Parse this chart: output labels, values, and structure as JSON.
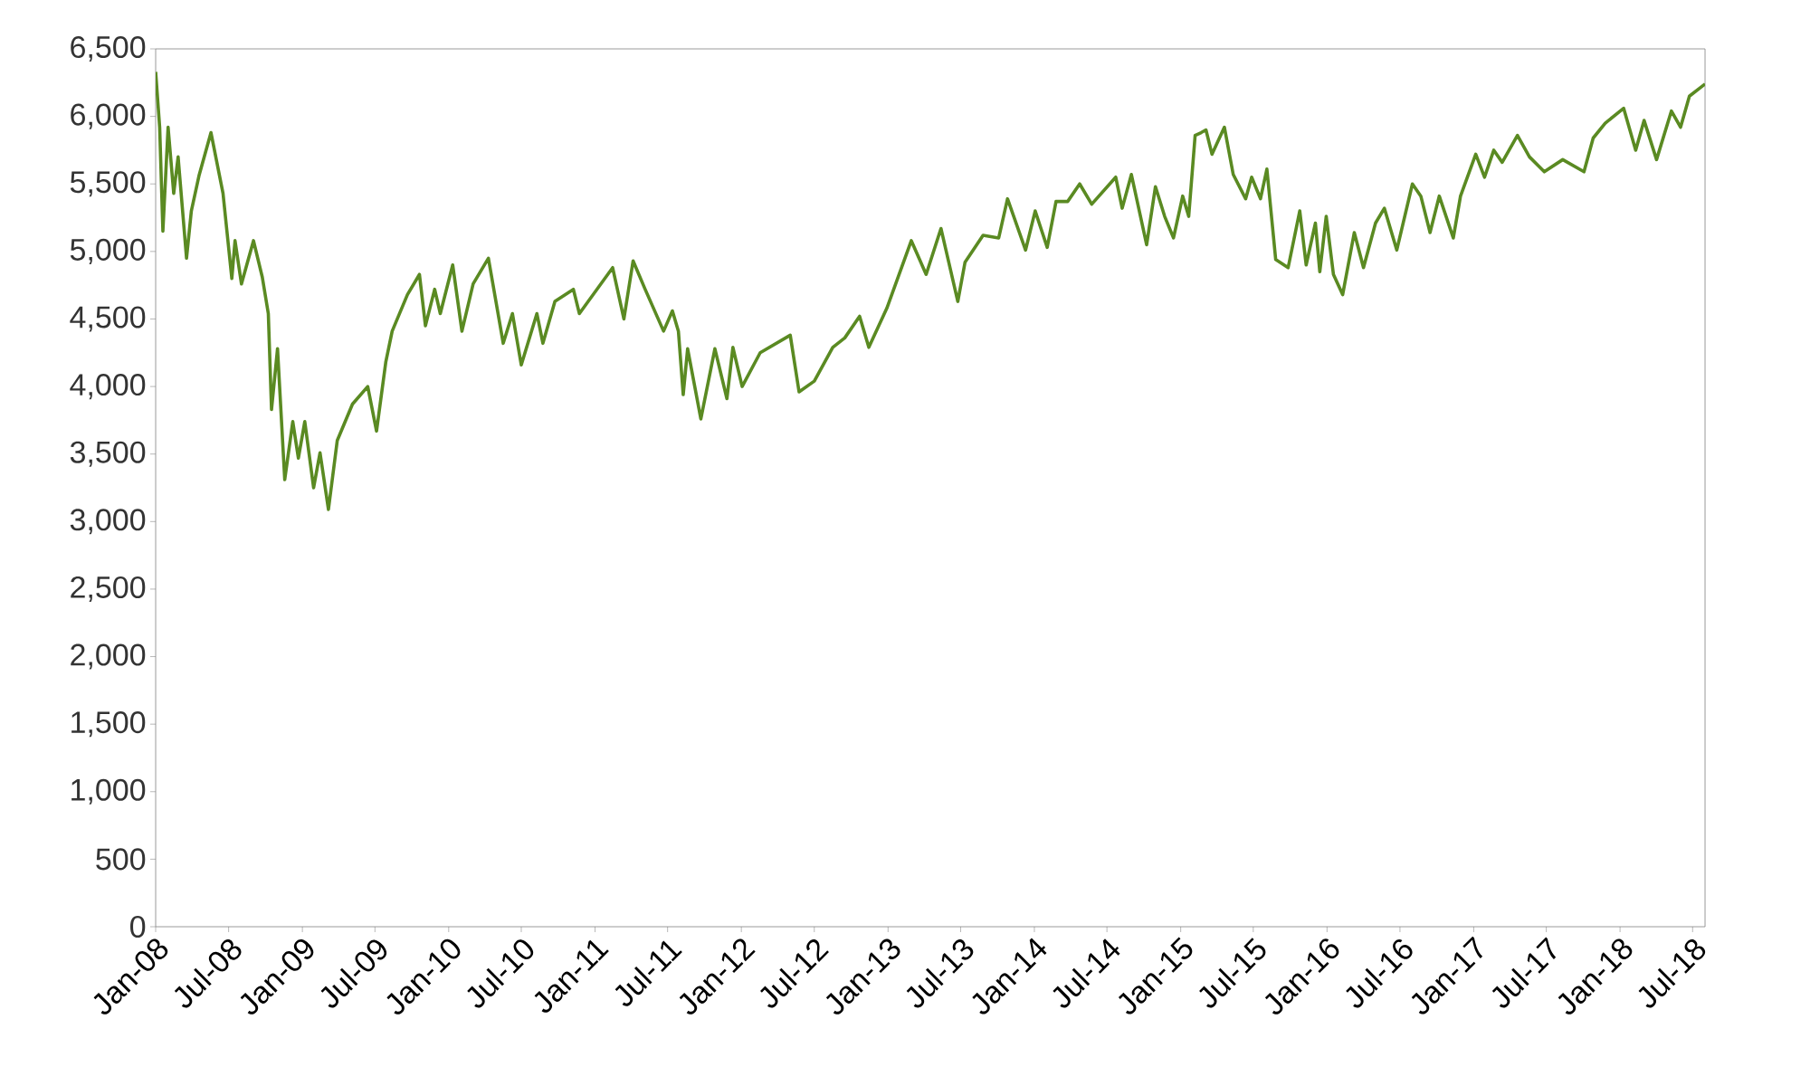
{
  "chart_data": {
    "type": "line",
    "color": "#5a8a22",
    "marker": "none",
    "line_style": "solid",
    "grid": false,
    "xlim": [
      "2008-01-01",
      "2018-08-01"
    ],
    "ylim": [
      0,
      6500
    ],
    "xticks": [
      {
        "value": "2008-01",
        "label": "Jan-08"
      },
      {
        "value": "2008-07",
        "label": "Jul-08"
      },
      {
        "value": "2009-01",
        "label": "Jan-09"
      },
      {
        "value": "2009-07",
        "label": "Jul-09"
      },
      {
        "value": "2010-01",
        "label": "Jan-10"
      },
      {
        "value": "2010-07",
        "label": "Jul-10"
      },
      {
        "value": "2011-01",
        "label": "Jan-11"
      },
      {
        "value": "2011-07",
        "label": "Jul-11"
      },
      {
        "value": "2012-01",
        "label": "Jan-12"
      },
      {
        "value": "2012-07",
        "label": "Jul-12"
      },
      {
        "value": "2013-01",
        "label": "Jan-13"
      },
      {
        "value": "2013-07",
        "label": "Jul-13"
      },
      {
        "value": "2014-01",
        "label": "Jan-14"
      },
      {
        "value": "2014-07",
        "label": "Jul-14"
      },
      {
        "value": "2015-01",
        "label": "Jan-15"
      },
      {
        "value": "2015-07",
        "label": "Jul-15"
      },
      {
        "value": "2016-01",
        "label": "Jan-16"
      },
      {
        "value": "2016-07",
        "label": "Jul-16"
      },
      {
        "value": "2017-01",
        "label": "Jan-17"
      },
      {
        "value": "2017-07",
        "label": "Jul-17"
      },
      {
        "value": "2018-01",
        "label": "Jan-18"
      },
      {
        "value": "2018-07",
        "label": "Jul-18"
      }
    ],
    "yticks": [
      0,
      500,
      {
        "value": 1000,
        "label": "1,000"
      },
      {
        "value": 1500,
        "label": "1,500"
      },
      {
        "value": 2000,
        "label": "2,000"
      },
      {
        "value": 2500,
        "label": "2,500"
      },
      {
        "value": 3000,
        "label": "3,000"
      },
      {
        "value": 3500,
        "label": "3,500"
      },
      {
        "value": 4000,
        "label": "4,000"
      },
      {
        "value": 4500,
        "label": "4,500"
      },
      {
        "value": 5000,
        "label": "5,000"
      },
      {
        "value": 5500,
        "label": "5,500"
      },
      {
        "value": 6000,
        "label": "6,000"
      },
      {
        "value": 6500,
        "label": "6,500"
      }
    ],
    "x": [
      "2008-01-01",
      "2008-01-11",
      "2008-01-19",
      "2008-02-01",
      "2008-02-15",
      "2008-02-26",
      "2008-03-18",
      "2008-03-30",
      "2008-04-18",
      "2008-05-18",
      "2008-06-17",
      "2008-07-09",
      "2008-07-17",
      "2008-08-02",
      "2008-09-01",
      "2008-09-23",
      "2008-10-08",
      "2008-10-16",
      "2008-10-31",
      "2008-11-18",
      "2008-12-08",
      "2008-12-22",
      "2009-01-07",
      "2009-01-29",
      "2009-02-14",
      "2009-03-07",
      "2009-03-29",
      "2009-05-06",
      "2009-06-13",
      "2009-07-05",
      "2009-07-28",
      "2009-08-13",
      "2009-09-20",
      "2009-10-20",
      "2009-11-04",
      "2009-11-27",
      "2009-12-11",
      "2010-01-11",
      "2010-02-03",
      "2010-03-03",
      "2010-04-10",
      "2010-05-17",
      "2010-06-09",
      "2010-07-01",
      "2010-08-09",
      "2010-08-24",
      "2010-09-23",
      "2010-11-08",
      "2010-11-23",
      "2011-02-14",
      "2011-03-14",
      "2011-04-06",
      "2011-05-06",
      "2011-06-21",
      "2011-07-13",
      "2011-07-28",
      "2011-08-09",
      "2011-08-20",
      "2011-09-22",
      "2011-10-27",
      "2011-11-26",
      "2011-12-11",
      "2012-01-03",
      "2012-02-17",
      "2012-05-02",
      "2012-05-24",
      "2012-07-01",
      "2012-08-16",
      "2012-09-15",
      "2012-10-22",
      "2012-11-14",
      "2012-12-29",
      "2013-02-28",
      "2013-04-06",
      "2013-05-13",
      "2013-05-27",
      "2013-06-24",
      "2013-07-12",
      "2013-08-26",
      "2013-10-04",
      "2013-10-26",
      "2013-12-10",
      "2014-01-03",
      "2014-02-02",
      "2014-02-24",
      "2014-03-25",
      "2014-04-24",
      "2014-05-24",
      "2014-07-23",
      "2014-08-08",
      "2014-08-31",
      "2014-10-08",
      "2014-10-30",
      "2014-11-22",
      "2014-12-14",
      "2015-01-06",
      "2015-01-21",
      "2015-02-06",
      "2015-02-21",
      "2015-03-05",
      "2015-03-20",
      "2015-04-20",
      "2015-05-12",
      "2015-06-12",
      "2015-06-27",
      "2015-07-19",
      "2015-08-04",
      "2015-08-26",
      "2015-09-26",
      "2015-10-25",
      "2015-11-10",
      "2015-12-03",
      "2015-12-14",
      "2015-12-30",
      "2016-01-17",
      "2016-02-09",
      "2016-03-09",
      "2016-04-01",
      "2016-05-01",
      "2016-05-23",
      "2016-06-23",
      "2016-08-01",
      "2016-08-22",
      "2016-09-14",
      "2016-10-07",
      "2016-11-11",
      "2016-11-29",
      "2017-01-06",
      "2017-01-28",
      "2017-02-20",
      "2017-03-13",
      "2017-04-20",
      "2017-05-20",
      "2017-06-26",
      "2017-08-11",
      "2017-10-03",
      "2017-10-26",
      "2017-11-25",
      "2018-01-10",
      "2018-02-09",
      "2018-03-02",
      "2018-04-02",
      "2018-05-09",
      "2018-06-01",
      "2018-06-23",
      "2018-08-01"
    ],
    "values": [
      6330,
      5920,
      5150,
      5920,
      5430,
      5700,
      4950,
      5300,
      5560,
      5880,
      5430,
      4800,
      5080,
      4760,
      5080,
      4810,
      4540,
      3830,
      4280,
      3310,
      3740,
      3470,
      3740,
      3250,
      3510,
      3090,
      3600,
      3870,
      4000,
      3670,
      4180,
      4410,
      4680,
      4830,
      4450,
      4720,
      4540,
      4900,
      4410,
      4760,
      4950,
      4320,
      4540,
      4160,
      4540,
      4320,
      4630,
      4720,
      4540,
      4880,
      4500,
      4930,
      4720,
      4410,
      4560,
      4410,
      3940,
      4280,
      3760,
      4280,
      3910,
      4290,
      4000,
      4250,
      4380,
      3960,
      4040,
      4290,
      4360,
      4520,
      4290,
      4580,
      5080,
      4830,
      5170,
      4990,
      4630,
      4920,
      5120,
      5100,
      5390,
      5010,
      5300,
      5030,
      5370,
      5370,
      5500,
      5350,
      5550,
      5320,
      5570,
      5050,
      5480,
      5260,
      5100,
      5410,
      5260,
      5860,
      5880,
      5900,
      5720,
      5920,
      5570,
      5390,
      5550,
      5390,
      5610,
      4940,
      4880,
      5300,
      4900,
      5210,
      4850,
      5260,
      4830,
      4680,
      5140,
      4880,
      5210,
      5320,
      5010,
      5500,
      5410,
      5140,
      5410,
      5100,
      5410,
      5720,
      5550,
      5750,
      5660,
      5860,
      5700,
      5590,
      5680,
      5590,
      5840,
      5950,
      6060,
      5750,
      5970,
      5680,
      6040,
      5920,
      6150,
      6240
    ]
  }
}
